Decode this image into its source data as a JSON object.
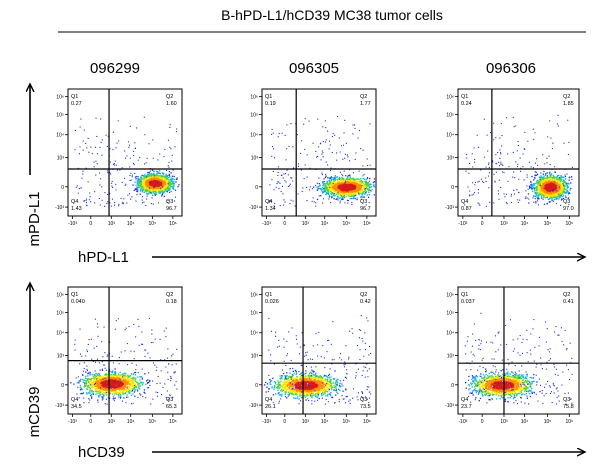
{
  "title": "B-hPD-L1/hCD39 MC38 tumor cells",
  "sample_ids": [
    "096299",
    "096305",
    "096306"
  ],
  "rows": [
    {
      "y_label": "mPD-L1",
      "x_label": "hPD-L1"
    },
    {
      "y_label": "mCD39",
      "x_label": "hCD39"
    }
  ],
  "chart_data": [
    {
      "type": "scatter",
      "sample": "096299",
      "x_marker": "hPD-L1",
      "y_marker": "mPD-L1",
      "quadrants": {
        "Q1": "0.27",
        "Q2": "1.60",
        "Q3": "96.7",
        "Q4": "1.43"
      },
      "x_ticks": [
        "-10³",
        "0",
        "10³",
        "10⁴",
        "10⁵",
        "10⁶"
      ],
      "y_ticks": [
        "10⁶",
        "10⁵",
        "10⁴",
        "10³",
        "0",
        "-10³"
      ],
      "population_center": {
        "x": "≈10⁵ (hPD-L1 high)",
        "y": "≈0"
      }
    },
    {
      "type": "scatter",
      "sample": "096305",
      "x_marker": "hPD-L1",
      "y_marker": "mPD-L1",
      "quadrants": {
        "Q1": "0.19",
        "Q2": "1.77",
        "Q3": "96.7",
        "Q4": "1.34"
      },
      "x_ticks": [
        "-10³",
        "0",
        "10³",
        "10⁴",
        "10⁵",
        "10⁶"
      ],
      "y_ticks": [
        "10⁶",
        "10⁵",
        "10⁴",
        "10³",
        "0",
        "-10³"
      ]
    },
    {
      "type": "scatter",
      "sample": "096306",
      "x_marker": "hPD-L1",
      "y_marker": "mPD-L1",
      "quadrants": {
        "Q1": "0.24",
        "Q2": "1.85",
        "Q3": "97.0",
        "Q4": "0.87"
      },
      "x_ticks": [
        "-10³",
        "0",
        "10³",
        "10⁴",
        "10⁵",
        "10⁶"
      ],
      "y_ticks": [
        "10⁶",
        "10⁵",
        "10⁴",
        "10³",
        "0",
        "-10³"
      ]
    },
    {
      "type": "scatter",
      "sample": "096299",
      "x_marker": "hCD39",
      "y_marker": "mCD39",
      "quadrants": {
        "Q1": "0.040",
        "Q2": "0.18",
        "Q3": "65.3",
        "Q4": "34.5"
      },
      "x_ticks": [
        "-10³",
        "0",
        "10³",
        "10⁴",
        "10⁵",
        "10⁶"
      ],
      "y_ticks": [
        "10⁶",
        "10⁵",
        "10⁴",
        "10³",
        "0",
        "-10³"
      ]
    },
    {
      "type": "scatter",
      "sample": "096305",
      "x_marker": "hCD39",
      "y_marker": "mCD39",
      "quadrants": {
        "Q1": "0.026",
        "Q2": "0.42",
        "Q3": "73.5",
        "Q4": "26.1"
      },
      "x_ticks": [
        "-10³",
        "0",
        "10³",
        "10⁴",
        "10⁵",
        "10⁶"
      ],
      "y_ticks": [
        "10⁶",
        "10⁵",
        "10⁴",
        "10³",
        "0",
        "-10³"
      ]
    },
    {
      "type": "scatter",
      "sample": "096306",
      "x_marker": "hCD39",
      "y_marker": "mCD39",
      "quadrants": {
        "Q1": "0.037",
        "Q2": "0.41",
        "Q3": "75.8",
        "Q4": "23.7"
      },
      "x_ticks": [
        "-10³",
        "0",
        "10³",
        "10⁴",
        "10⁵",
        "10⁶"
      ],
      "y_ticks": [
        "10⁶",
        "10⁵",
        "10⁴",
        "10³",
        "0",
        "-10³"
      ]
    }
  ]
}
